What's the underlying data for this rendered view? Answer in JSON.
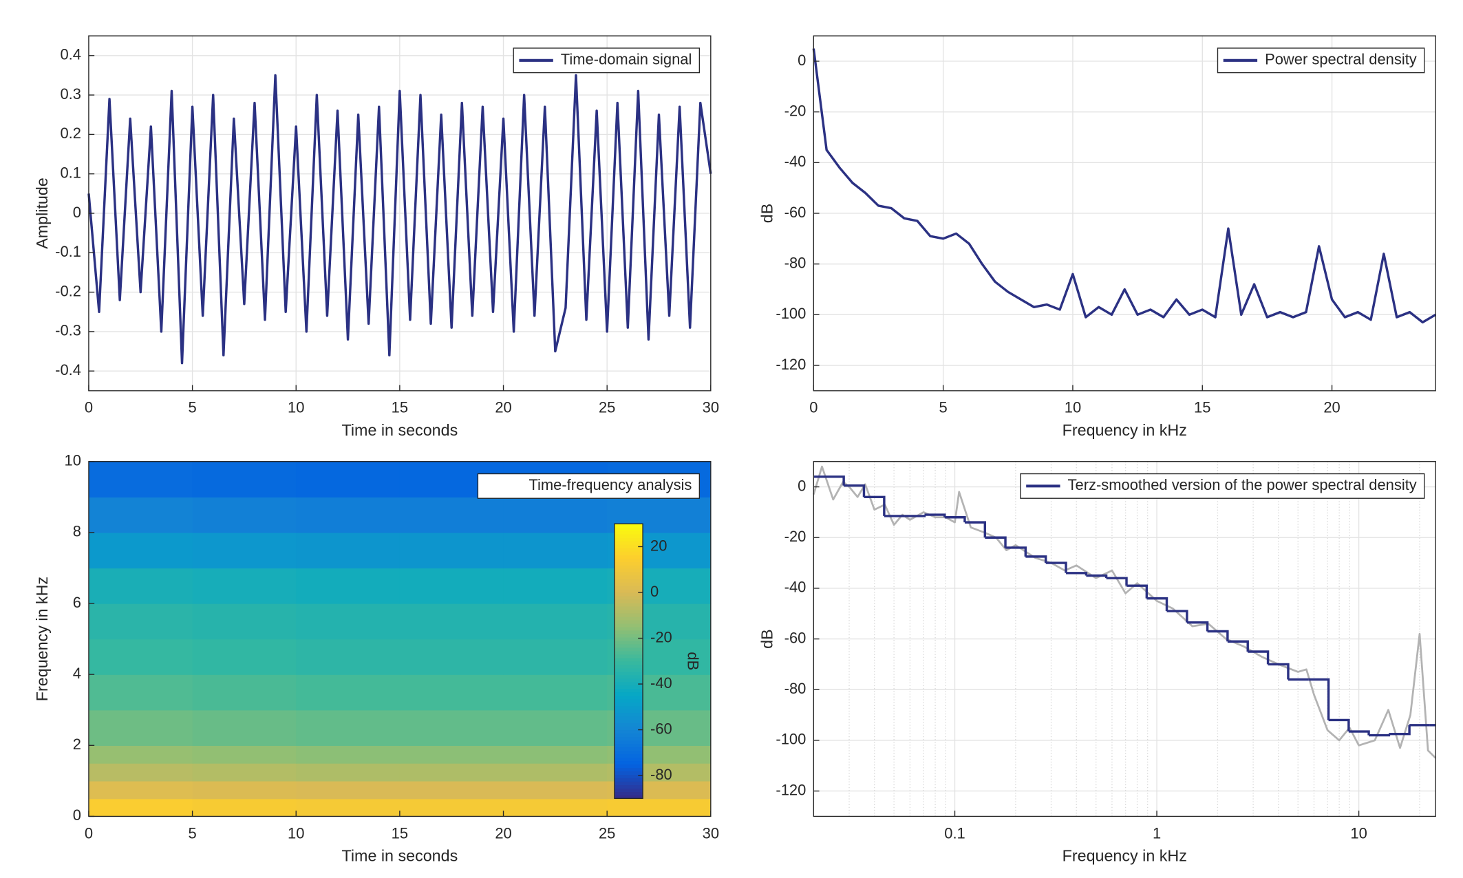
{
  "chart_data": [
    {
      "type": "line",
      "xlabel": "Time in seconds",
      "ylabel": "Amplitude",
      "grid": true,
      "xlim": [
        0,
        30
      ],
      "ylim": [
        -0.45,
        0.45
      ],
      "xticks": [
        0,
        5,
        10,
        15,
        20,
        25,
        30
      ],
      "yticks": [
        -0.4,
        -0.3,
        -0.2,
        -0.1,
        0,
        0.1,
        0.2,
        0.3,
        0.4
      ],
      "series": [
        {
          "name": "Time-domain signal",
          "color": "#2b3183",
          "x": [
            0,
            0.5,
            1,
            1.5,
            2,
            2.5,
            3,
            3.5,
            4,
            4.5,
            5,
            5.5,
            6,
            6.5,
            7,
            7.5,
            8,
            8.5,
            9,
            9.5,
            10,
            10.5,
            11,
            11.5,
            12,
            12.5,
            13,
            13.5,
            14,
            14.5,
            15,
            15.5,
            16,
            16.5,
            17,
            17.5,
            18,
            18.5,
            19,
            19.5,
            20,
            20.5,
            21,
            21.5,
            22,
            22.5,
            23,
            23.5,
            24,
            24.5,
            25,
            25.5,
            26,
            26.5,
            27,
            27.5,
            28,
            28.5,
            29,
            29.5,
            30
          ],
          "values": [
            0.05,
            -0.25,
            0.29,
            -0.22,
            0.24,
            -0.2,
            0.22,
            -0.3,
            0.31,
            -0.38,
            0.27,
            -0.26,
            0.3,
            -0.36,
            0.24,
            -0.23,
            0.28,
            -0.27,
            0.35,
            -0.25,
            0.22,
            -0.3,
            0.3,
            -0.26,
            0.26,
            -0.32,
            0.25,
            -0.28,
            0.27,
            -0.36,
            0.31,
            -0.27,
            0.3,
            -0.28,
            0.25,
            -0.29,
            0.28,
            -0.26,
            0.27,
            -0.25,
            0.24,
            -0.3,
            0.3,
            -0.26,
            0.27,
            -0.35,
            -0.24,
            0.35,
            -0.27,
            0.26,
            -0.3,
            0.28,
            -0.29,
            0.31,
            -0.32,
            0.25,
            -0.26,
            0.27,
            -0.29,
            0.28,
            0.1
          ]
        }
      ]
    },
    {
      "type": "line",
      "xlabel": "Frequency in kHz",
      "ylabel": "dB",
      "grid": true,
      "xlim": [
        0,
        24
      ],
      "ylim": [
        -130,
        10
      ],
      "xticks": [
        0,
        5,
        10,
        15,
        20
      ],
      "yticks": [
        -120,
        -100,
        -80,
        -60,
        -40,
        -20,
        0
      ],
      "series": [
        {
          "name": "Power spectral density",
          "color": "#2b3183",
          "x": [
            0,
            0.5,
            1,
            1.5,
            2,
            2.5,
            3,
            3.5,
            4,
            4.5,
            5,
            5.5,
            6,
            6.5,
            7,
            7.5,
            8,
            8.5,
            9,
            9.5,
            10,
            10.5,
            11,
            11.5,
            12,
            12.5,
            13,
            13.5,
            14,
            14.5,
            15,
            15.5,
            16,
            16.5,
            17,
            17.5,
            18,
            18.5,
            19,
            19.5,
            20,
            20.5,
            21,
            21.5,
            22,
            22.5,
            23,
            23.5,
            24
          ],
          "values": [
            5,
            -35,
            -42,
            -48,
            -52,
            -57,
            -58,
            -62,
            -63,
            -69,
            -70,
            -68,
            -72,
            -80,
            -87,
            -91,
            -94,
            -97,
            -96,
            -98,
            -84,
            -101,
            -97,
            -100,
            -90,
            -100,
            -98,
            -101,
            -94,
            -100,
            -98,
            -101,
            -66,
            -100,
            -88,
            -101,
            -99,
            -101,
            -99,
            -73,
            -94,
            -101,
            -99,
            -102,
            -76,
            -101,
            -99,
            -103,
            -100
          ]
        }
      ]
    },
    {
      "type": "heatmap",
      "name": "Time-frequency analysis",
      "xlabel": "Time in seconds",
      "ylabel": "Frequency in kHz",
      "grid": false,
      "xlim": [
        0,
        30
      ],
      "ylim": [
        0,
        10
      ],
      "xticks": [
        0,
        5,
        10,
        15,
        20,
        25,
        30
      ],
      "yticks": [
        0,
        2,
        4,
        6,
        8,
        10
      ],
      "xbins": [
        0,
        5,
        10,
        15,
        20,
        25,
        30
      ],
      "ybins": [
        0,
        0.5,
        1,
        1.5,
        2,
        3,
        4,
        5,
        6,
        7,
        8,
        9,
        10
      ],
      "z": [
        [
          14,
          13,
          12,
          12,
          12,
          13
        ],
        [
          2,
          1,
          0,
          0,
          0,
          1
        ],
        [
          -7,
          -8,
          -9,
          -9,
          -9,
          -8
        ],
        [
          -14,
          -15,
          -16,
          -16,
          -16,
          -15
        ],
        [
          -21,
          -22,
          -23,
          -23,
          -23,
          -22
        ],
        [
          -26,
          -27,
          -28,
          -28,
          -28,
          -27
        ],
        [
          -31,
          -32,
          -33,
          -33,
          -33,
          -32
        ],
        [
          -34,
          -35,
          -36,
          -36,
          -36,
          -35
        ],
        [
          -39,
          -40,
          -41,
          -41,
          -41,
          -40
        ],
        [
          -51,
          -52,
          -53,
          -53,
          -53,
          -52
        ],
        [
          -61,
          -62,
          -63,
          -63,
          -63,
          -62
        ],
        [
          -71,
          -72,
          -73,
          -73,
          -73,
          -72
        ]
      ],
      "colormap": "parula",
      "clim": [
        -90,
        30
      ],
      "cticks": [
        20,
        0,
        -20,
        -40,
        -60,
        -80
      ],
      "colorbar_label": "dB"
    },
    {
      "type": "line",
      "xlabel": "Frequency in kHz",
      "ylabel": "dB",
      "grid": true,
      "minorgrid": true,
      "xscale": "log",
      "xlim": [
        0.02,
        24
      ],
      "ylim": [
        -130,
        10
      ],
      "xticks": [
        0.1,
        1,
        10
      ],
      "yticks": [
        -120,
        -100,
        -80,
        -60,
        -40,
        -20,
        0
      ],
      "series": [
        {
          "color": "#b3b3b3",
          "x": [
            0.02,
            0.022,
            0.025,
            0.028,
            0.03,
            0.033,
            0.036,
            0.04,
            0.045,
            0.05,
            0.055,
            0.06,
            0.07,
            0.08,
            0.09,
            0.1,
            0.105,
            0.12,
            0.14,
            0.16,
            0.18,
            0.2,
            0.25,
            0.3,
            0.35,
            0.4,
            0.5,
            0.6,
            0.7,
            0.8,
            1,
            1.2,
            1.5,
            1.8,
            2.2,
            2.7,
            3.3,
            4,
            5,
            5.5,
            6,
            7,
            8,
            9,
            10,
            12,
            14,
            16,
            18,
            20,
            22,
            24
          ],
          "values": [
            -3,
            8,
            -5,
            2,
            0,
            -4,
            1,
            -9,
            -7,
            -15,
            -11,
            -13,
            -10,
            -12,
            -12,
            -14,
            -2,
            -16,
            -18,
            -20,
            -25,
            -23,
            -28,
            -30,
            -33,
            -31,
            -36,
            -33,
            -42,
            -38,
            -45,
            -48,
            -55,
            -54,
            -60,
            -63,
            -67,
            -70,
            -73,
            -72,
            -82,
            -96,
            -100,
            -95,
            -102,
            -100,
            -88,
            -103,
            -90,
            -58,
            -104,
            -107
          ]
        },
        {
          "name": "Terz-smoothed version of the power spectral density",
          "color": "#2b3183",
          "drawstyle": "steps-post",
          "x": [
            0.02,
            0.0282,
            0.0355,
            0.0447,
            0.0562,
            0.0708,
            0.0891,
            0.112,
            0.141,
            0.178,
            0.224,
            0.282,
            0.355,
            0.447,
            0.562,
            0.708,
            0.891,
            1.12,
            1.41,
            1.78,
            2.24,
            2.82,
            3.55,
            4.47,
            5.62,
            7.08,
            8.91,
            11.2,
            14.1,
            17.8,
            22.4
          ],
          "values": [
            4,
            0.5,
            -4,
            -11.5,
            -11.5,
            -11,
            -12,
            -14,
            -20,
            -24,
            -27.5,
            -30,
            -34,
            -35,
            -36,
            -39,
            -44,
            -49,
            -53.5,
            -57,
            -61,
            -65,
            -70,
            -76,
            -76,
            -92,
            -96.5,
            -98,
            -97.5,
            -94,
            -94
          ]
        }
      ]
    }
  ]
}
